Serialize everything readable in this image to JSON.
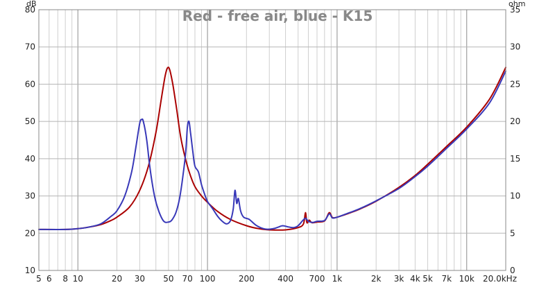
{
  "chart_data": {
    "type": "line",
    "title": "Red - free air, blue - K15",
    "x_scale": "log",
    "xlim": [
      5,
      20000
    ],
    "x_ticks": [
      {
        "v": 5,
        "label": "5"
      },
      {
        "v": 6,
        "label": "6"
      },
      {
        "v": 8,
        "label": "8"
      },
      {
        "v": 10,
        "label": "10"
      },
      {
        "v": 20,
        "label": "20"
      },
      {
        "v": 30,
        "label": "30"
      },
      {
        "v": 50,
        "label": "50"
      },
      {
        "v": 70,
        "label": "70"
      },
      {
        "v": 100,
        "label": "100"
      },
      {
        "v": 200,
        "label": "200"
      },
      {
        "v": 400,
        "label": "400"
      },
      {
        "v": 700,
        "label": "700"
      },
      {
        "v": 1000,
        "label": "1k"
      },
      {
        "v": 2000,
        "label": "2k"
      },
      {
        "v": 3000,
        "label": "3k"
      },
      {
        "v": 4000,
        "label": "4k"
      },
      {
        "v": 5000,
        "label": "5k"
      },
      {
        "v": 7000,
        "label": "7k"
      },
      {
        "v": 10000,
        "label": "10k"
      },
      {
        "v": 20000,
        "label": "20.0kHz"
      }
    ],
    "y_left": {
      "unit": "dB",
      "ylim": [
        10,
        80
      ],
      "ticks": [
        10,
        20,
        30,
        40,
        50,
        60,
        70,
        80
      ]
    },
    "y_right": {
      "unit": "ohm",
      "ylim": [
        0,
        35
      ],
      "ticks": [
        0,
        5,
        10,
        15,
        20,
        25,
        30,
        35
      ]
    },
    "grid": true,
    "series": [
      {
        "color": "#aa0000",
        "points": [
          [
            5,
            21.0
          ],
          [
            8,
            21.0
          ],
          [
            10,
            21.2
          ],
          [
            12,
            21.6
          ],
          [
            15,
            22.3
          ],
          [
            18,
            23.4
          ],
          [
            20,
            24.3
          ],
          [
            25,
            27.0
          ],
          [
            30,
            31.5
          ],
          [
            35,
            38.0
          ],
          [
            40,
            47.0
          ],
          [
            44,
            56.0
          ],
          [
            47,
            62.0
          ],
          [
            49,
            64.3
          ],
          [
            51,
            64.0
          ],
          [
            54,
            60.0
          ],
          [
            58,
            53.0
          ],
          [
            62,
            46.0
          ],
          [
            67,
            40.5
          ],
          [
            73,
            36.0
          ],
          [
            80,
            32.5
          ],
          [
            90,
            30.0
          ],
          [
            100,
            28.3
          ],
          [
            120,
            25.8
          ],
          [
            150,
            23.7
          ],
          [
            200,
            22.0
          ],
          [
            250,
            21.2
          ],
          [
            300,
            20.9
          ],
          [
            400,
            20.9
          ],
          [
            500,
            21.5
          ],
          [
            550,
            22.5
          ],
          [
            570,
            25.5
          ],
          [
            585,
            22.8
          ],
          [
            610,
            23.5
          ],
          [
            640,
            22.8
          ],
          [
            700,
            23.0
          ],
          [
            800,
            23.3
          ],
          [
            870,
            25.5
          ],
          [
            920,
            24.2
          ],
          [
            1000,
            24.3
          ],
          [
            1200,
            25.2
          ],
          [
            1500,
            26.5
          ],
          [
            2000,
            28.6
          ],
          [
            3000,
            32.3
          ],
          [
            4000,
            35.5
          ],
          [
            5000,
            38.5
          ],
          [
            7000,
            43.3
          ],
          [
            10000,
            48.5
          ],
          [
            15000,
            56.0
          ],
          [
            20000,
            64.5
          ]
        ]
      },
      {
        "color": "#3838b8",
        "points": [
          [
            5,
            21.0
          ],
          [
            8,
            21.0
          ],
          [
            10,
            21.2
          ],
          [
            12,
            21.6
          ],
          [
            15,
            22.5
          ],
          [
            18,
            24.5
          ],
          [
            20,
            26.0
          ],
          [
            23,
            30.0
          ],
          [
            26,
            36.5
          ],
          [
            28,
            43.0
          ],
          [
            30,
            49.5
          ],
          [
            31,
            50.5
          ],
          [
            32,
            50.0
          ],
          [
            34,
            45.0
          ],
          [
            36,
            37.5
          ],
          [
            39,
            30.0
          ],
          [
            42,
            26.0
          ],
          [
            46,
            23.2
          ],
          [
            50,
            23.0
          ],
          [
            53,
            23.5
          ],
          [
            57,
            25.5
          ],
          [
            61,
            29.5
          ],
          [
            65,
            36.0
          ],
          [
            68,
            42.0
          ],
          [
            70,
            48.5
          ],
          [
            72,
            50.0
          ],
          [
            74,
            47.0
          ],
          [
            77,
            42.0
          ],
          [
            80,
            38.0
          ],
          [
            85,
            36.5
          ],
          [
            90,
            33.0
          ],
          [
            95,
            30.5
          ],
          [
            100,
            28.5
          ],
          [
            110,
            26.5
          ],
          [
            120,
            24.5
          ],
          [
            130,
            23.2
          ],
          [
            140,
            22.5
          ],
          [
            150,
            23.3
          ],
          [
            158,
            26.5
          ],
          [
            163,
            31.5
          ],
          [
            168,
            28.0
          ],
          [
            173,
            29.3
          ],
          [
            180,
            26.0
          ],
          [
            190,
            24.3
          ],
          [
            210,
            23.7
          ],
          [
            240,
            22.0
          ],
          [
            280,
            21.1
          ],
          [
            320,
            21.2
          ],
          [
            350,
            21.6
          ],
          [
            380,
            22.0
          ],
          [
            420,
            21.7
          ],
          [
            460,
            21.5
          ],
          [
            500,
            22.0
          ],
          [
            540,
            23.3
          ],
          [
            570,
            24.0
          ],
          [
            600,
            23.2
          ],
          [
            650,
            22.9
          ],
          [
            700,
            23.2
          ],
          [
            800,
            23.4
          ],
          [
            870,
            25.2
          ],
          [
            920,
            24.1
          ],
          [
            1000,
            24.3
          ],
          [
            1200,
            25.3
          ],
          [
            1500,
            26.6
          ],
          [
            2000,
            28.7
          ],
          [
            3000,
            32.0
          ],
          [
            4000,
            35.2
          ],
          [
            5000,
            38.0
          ],
          [
            7000,
            42.8
          ],
          [
            10000,
            48.0
          ],
          [
            15000,
            55.0
          ],
          [
            20000,
            63.5
          ]
        ]
      }
    ]
  }
}
